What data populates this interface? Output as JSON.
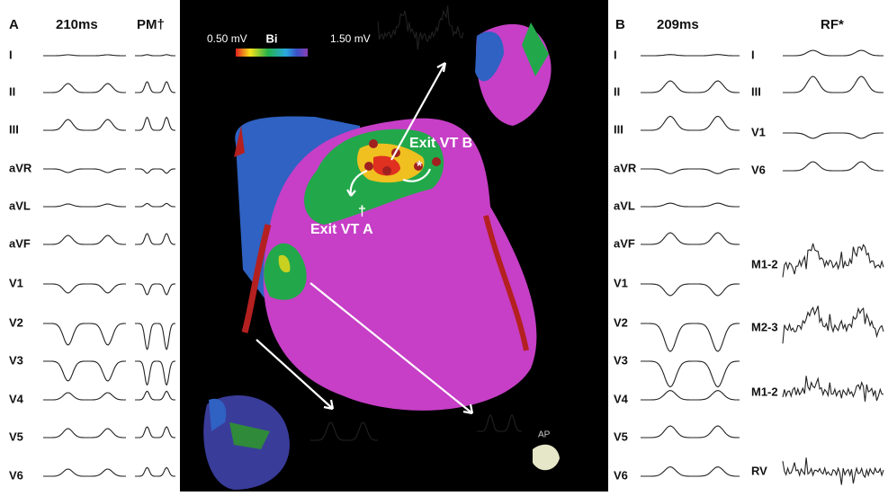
{
  "panel_a": {
    "label": "A",
    "headers": [
      "210ms",
      "PM†"
    ],
    "leads": [
      "I",
      "II",
      "III",
      "aVR",
      "aVL",
      "aVF",
      "V1",
      "V2",
      "V3",
      "V4",
      "V5",
      "V6"
    ]
  },
  "map": {
    "scale": {
      "min": "0.50 mV",
      "mode": "Bi",
      "max": "1.50 mV"
    },
    "exit_b": "Exit VT B",
    "exit_a": "Exit VT A",
    "dagger": "†",
    "star": "*",
    "view": "AP"
  },
  "panel_b": {
    "label": "B",
    "headers": [
      "209ms",
      "RF*"
    ],
    "leads_left": [
      "I",
      "II",
      "III",
      "aVR",
      "aVL",
      "aVF",
      "V1",
      "V2",
      "V3",
      "V4",
      "V5",
      "V6"
    ],
    "leads_right": [
      "I",
      "III",
      "V1",
      "V6",
      "M1-2",
      "M2-3",
      "M1-2",
      "RV"
    ]
  }
}
